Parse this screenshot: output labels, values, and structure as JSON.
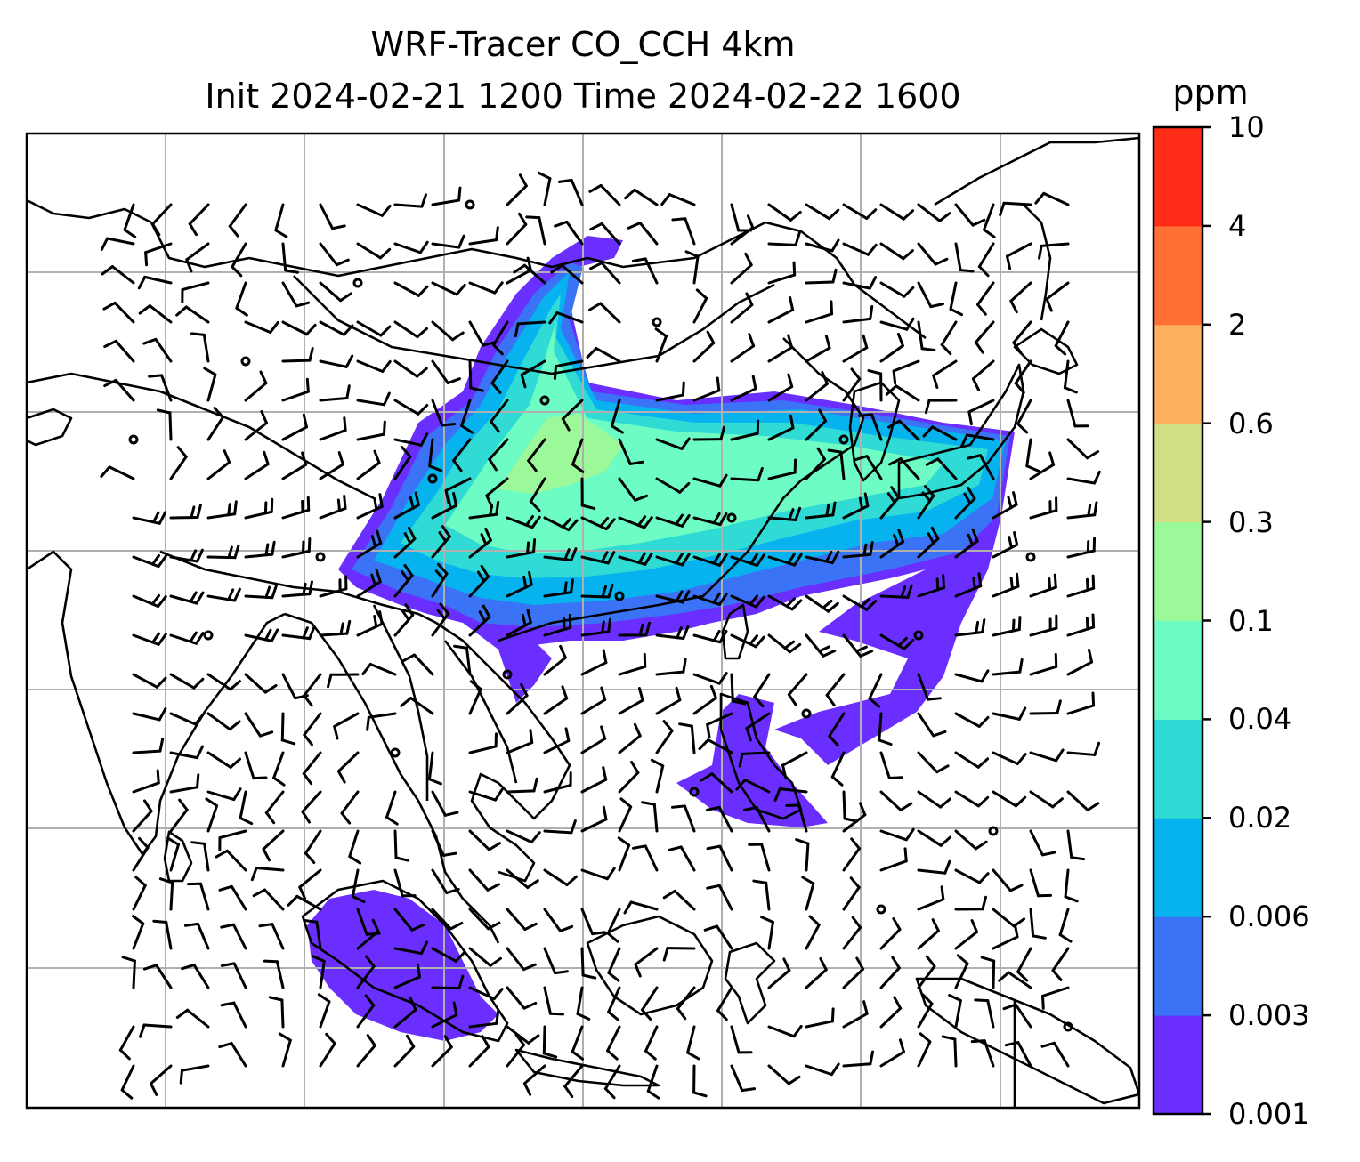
{
  "title": {
    "line1": "WRF-Tracer CO_CCH 4km",
    "line2": "Init 2024-02-21 1200 Time 2024-02-22 1600"
  },
  "colorbar": {
    "unit": "ppm",
    "levels": [
      "0.001",
      "0.003",
      "0.006",
      "0.02",
      "0.04",
      "0.1",
      "0.3",
      "0.6",
      "2",
      "4",
      "10"
    ],
    "colors": [
      "#6a2eff",
      "#3a73f5",
      "#07b3ee",
      "#2fdbd4",
      "#6cfcc4",
      "#9cf99a",
      "#d1de84",
      "#fdb060",
      "#ff7036",
      "#ff2d18"
    ]
  },
  "map": {
    "gridlines": true,
    "gridline_color": "#b0b0b0",
    "coastline_color": "#000000",
    "wind_barb_color": "#000000"
  }
}
